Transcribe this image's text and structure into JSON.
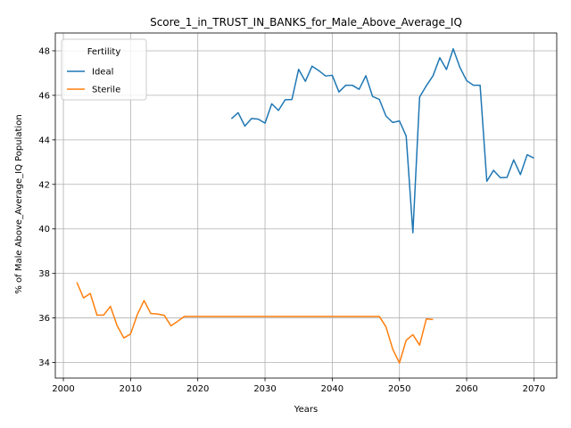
{
  "chart_data": {
    "type": "line",
    "title": "Score_1_in_TRUST_IN_BANKS_for_Male_Above_Average_IQ",
    "xlabel": "Years",
    "ylabel": "% of Male Above_Average_IQ Population",
    "xlim": [
      1998.8,
      2073.4
    ],
    "ylim": [
      33.3,
      48.8
    ],
    "xticks": [
      2000,
      2010,
      2020,
      2030,
      2040,
      2050,
      2060,
      2070
    ],
    "yticks": [
      34,
      36,
      38,
      40,
      42,
      44,
      46,
      48
    ],
    "grid": true,
    "legend": {
      "title": "Fertility",
      "placement": "top-left"
    },
    "series": [
      {
        "name": "Ideal",
        "color": "#1f77b4",
        "x": [
          2025,
          2026,
          2027,
          2028,
          2029,
          2030,
          2031,
          2032,
          2033,
          2034,
          2035,
          2036,
          2037,
          2038,
          2039,
          2040,
          2041,
          2042,
          2043,
          2044,
          2045,
          2046,
          2047,
          2048,
          2049,
          2050,
          2051,
          2052,
          2053,
          2054,
          2055,
          2056,
          2057,
          2058,
          2059,
          2060,
          2061,
          2062,
          2063,
          2064,
          2065,
          2066,
          2067,
          2068,
          2069,
          2070
        ],
        "values": [
          44.95,
          45.22,
          44.62,
          44.96,
          44.93,
          44.75,
          45.62,
          45.32,
          45.8,
          45.81,
          47.17,
          46.63,
          47.31,
          47.11,
          46.87,
          46.9,
          46.15,
          46.45,
          46.45,
          46.27,
          46.88,
          45.95,
          45.82,
          45.07,
          44.78,
          44.85,
          44.17,
          39.83,
          45.92,
          46.43,
          46.88,
          47.69,
          47.16,
          48.09,
          47.25,
          46.66,
          46.45,
          46.45,
          42.14,
          42.63,
          42.3,
          42.31,
          43.1,
          42.44,
          43.33,
          43.18
        ]
      },
      {
        "name": "Sterile",
        "color": "#ff7f0e",
        "x": [
          2002,
          2003,
          2004,
          2005,
          2006,
          2007,
          2008,
          2009,
          2010,
          2011,
          2012,
          2013,
          2014,
          2015,
          2016,
          2017,
          2018,
          2019,
          2020,
          2021,
          2022,
          2023,
          2024,
          2025,
          2026,
          2027,
          2028,
          2029,
          2030,
          2031,
          2032,
          2033,
          2034,
          2035,
          2036,
          2037,
          2038,
          2039,
          2040,
          2041,
          2042,
          2043,
          2044,
          2045,
          2046,
          2047,
          2048,
          2049,
          2050,
          2051,
          2052,
          2053,
          2054,
          2055
        ],
        "values": [
          37.6,
          36.9,
          37.1,
          36.13,
          36.13,
          36.52,
          35.65,
          35.1,
          35.28,
          36.15,
          36.78,
          36.2,
          36.18,
          36.12,
          35.65,
          35.85,
          36.07,
          36.07,
          36.07,
          36.07,
          36.07,
          36.07,
          36.07,
          36.07,
          36.07,
          36.07,
          36.07,
          36.07,
          36.07,
          36.07,
          36.07,
          36.07,
          36.07,
          36.07,
          36.07,
          36.07,
          36.07,
          36.07,
          36.07,
          36.07,
          36.07,
          36.07,
          36.07,
          36.07,
          36.07,
          36.07,
          35.6,
          34.6,
          33.98,
          35.0,
          35.25,
          34.78,
          35.96,
          35.93
        ]
      }
    ]
  }
}
